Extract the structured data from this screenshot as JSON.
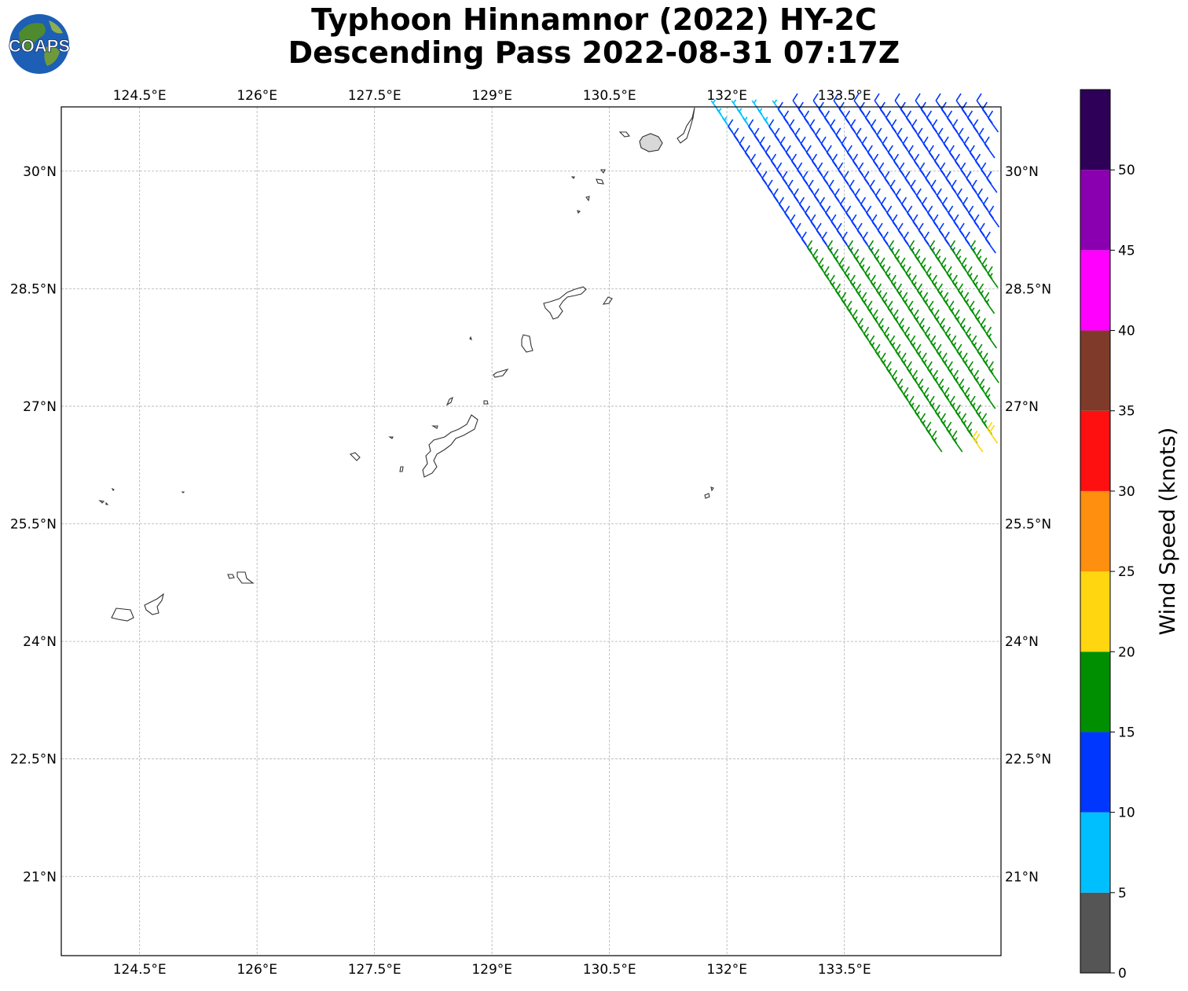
{
  "title": {
    "line1": "Typhoon Hinnamnor (2022) HY-2C",
    "line2": "Descending Pass 2022-08-31 07:17Z"
  },
  "logo": {
    "text": "COAPS",
    "icon": "globe-logo-icon"
  },
  "map": {
    "projection": "PlateCarree",
    "lon_range": [
      123.5,
      135.5
    ],
    "lat_range": [
      19.99,
      30.82
    ],
    "lon_ticks": [
      "124.5°E",
      "126°E",
      "127.5°E",
      "129°E",
      "130.5°E",
      "132°E",
      "133.5°E"
    ],
    "lat_ticks": [
      "30°N",
      "28.5°N",
      "27°N",
      "25.5°N",
      "24°N",
      "22.5°N",
      "21°N"
    ],
    "gridlines": true,
    "barb_colors_by_speed": [
      "#555555",
      "#00bfff",
      "#0037ff",
      "#008f00",
      "#ffd60f",
      "#ff8f0f",
      "#ff1010",
      "#803a29",
      "#ff00ff",
      "#8a00b0",
      "#2e0058"
    ]
  },
  "colorbar": {
    "label": "Wind Speed (knots)",
    "ticks": [
      "0",
      "5",
      "10",
      "15",
      "20",
      "25",
      "30",
      "35",
      "40",
      "45",
      "50"
    ],
    "bins": [
      {
        "from": 0,
        "to": 5,
        "color": "#555555"
      },
      {
        "from": 5,
        "to": 10,
        "color": "#00bfff"
      },
      {
        "from": 10,
        "to": 15,
        "color": "#0037ff"
      },
      {
        "from": 15,
        "to": 20,
        "color": "#008f00"
      },
      {
        "from": 20,
        "to": 25,
        "color": "#ffd60f"
      },
      {
        "from": 25,
        "to": 30,
        "color": "#ff8f0f"
      },
      {
        "from": 30,
        "to": 35,
        "color": "#ff1010"
      },
      {
        "from": 35,
        "to": 40,
        "color": "#803a29"
      },
      {
        "from": 40,
        "to": 45,
        "color": "#ff00ff"
      },
      {
        "from": 45,
        "to": 50,
        "color": "#8a00b0"
      },
      {
        "from": 50,
        "to": 55,
        "color": "#2e0058"
      }
    ]
  }
}
